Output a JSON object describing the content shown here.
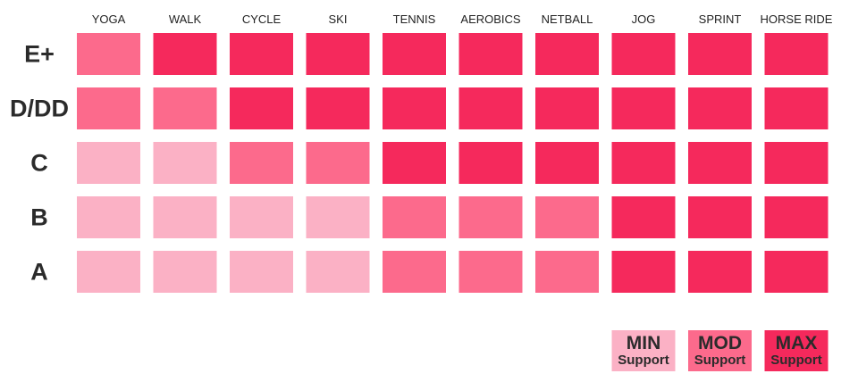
{
  "chart_data": {
    "type": "heatmap",
    "title": "",
    "xlabel": "",
    "ylabel": "",
    "columns": [
      "YOGA",
      "WALK",
      "CYCLE",
      "SKI",
      "TENNIS",
      "AEROBICS",
      "NETBALL",
      "JOG",
      "SPRINT",
      "HORSE RIDE"
    ],
    "rows": [
      "E+",
      "D/DD",
      "C",
      "B",
      "A"
    ],
    "levels": [
      {
        "key": "min",
        "main": "MIN",
        "sub": "Support",
        "color": "#fbb1c5"
      },
      {
        "key": "mod",
        "main": "MOD",
        "sub": "Support",
        "color": "#fc6a8c"
      },
      {
        "key": "max",
        "main": "MAX",
        "sub": "Support",
        "color": "#f5295c"
      }
    ],
    "values": [
      [
        "mod",
        "max",
        "max",
        "max",
        "max",
        "max",
        "max",
        "max",
        "max",
        "max"
      ],
      [
        "mod",
        "mod",
        "max",
        "max",
        "max",
        "max",
        "max",
        "max",
        "max",
        "max"
      ],
      [
        "min",
        "min",
        "mod",
        "mod",
        "max",
        "max",
        "max",
        "max",
        "max",
        "max"
      ],
      [
        "min",
        "min",
        "min",
        "min",
        "mod",
        "mod",
        "mod",
        "max",
        "max",
        "max"
      ],
      [
        "min",
        "min",
        "min",
        "min",
        "mod",
        "mod",
        "mod",
        "max",
        "max",
        "max"
      ]
    ],
    "legend_position": "bottom-right",
    "grid": false
  }
}
